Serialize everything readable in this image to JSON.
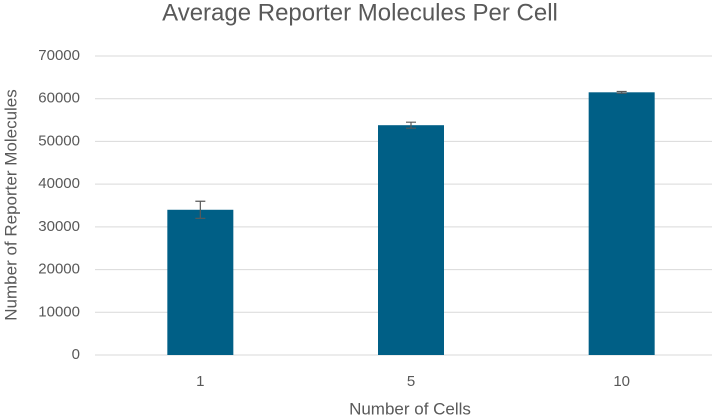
{
  "chart_data": {
    "type": "bar",
    "title": "Average Reporter Molecules Per Cell",
    "xlabel": "Number of Cells",
    "ylabel": "Number of Reporter Molecules",
    "categories": [
      "1",
      "5",
      "10"
    ],
    "values": [
      34000,
      53800,
      61500
    ],
    "errors": [
      2000,
      700,
      200
    ],
    "color": "#005f86",
    "ylim": [
      0,
      70000
    ],
    "yticks": [
      0,
      10000,
      20000,
      30000,
      40000,
      50000,
      60000,
      70000
    ],
    "grid": true
  }
}
